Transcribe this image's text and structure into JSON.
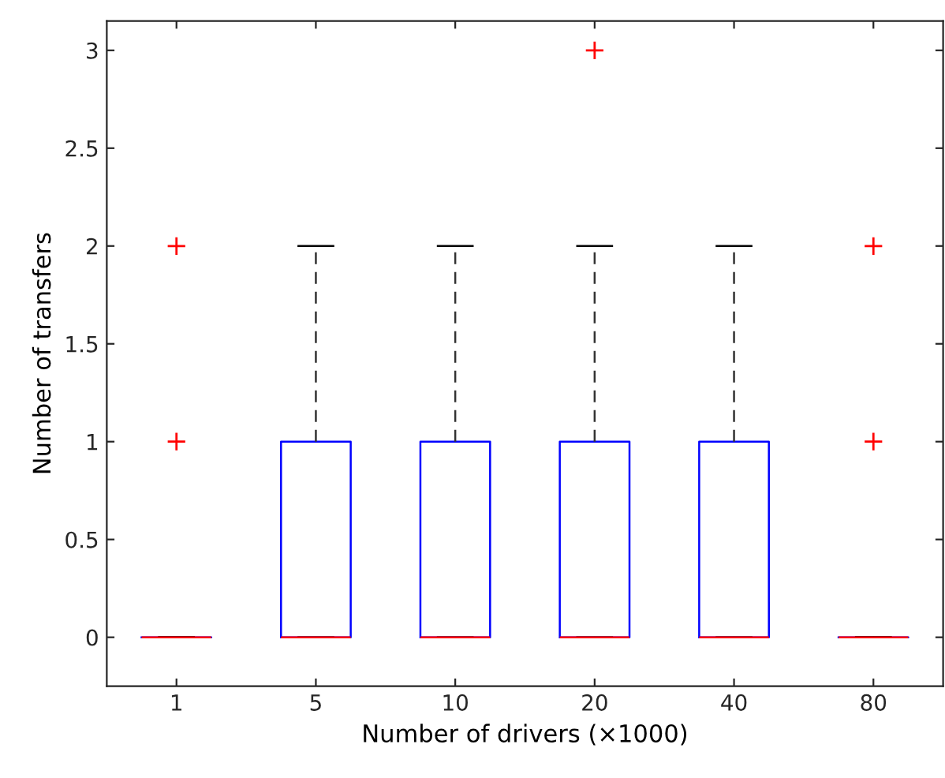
{
  "chart_data": {
    "type": "box",
    "xlabel": "Number of drivers (×1000)",
    "ylabel": "Number of transfers",
    "categories": [
      "1",
      "5",
      "10",
      "20",
      "40",
      "80"
    ],
    "series": [
      {
        "color": "#0000ff",
        "boxes": [
          {
            "low": 0,
            "q1": 0,
            "median": 0,
            "q3": 0,
            "high": 0,
            "outliers": [
              1,
              2
            ]
          },
          {
            "low": 0,
            "q1": 0,
            "median": 0,
            "q3": 1,
            "high": 2
          },
          {
            "low": 0,
            "q1": 0,
            "median": 0,
            "q3": 1,
            "high": 2
          },
          {
            "low": 0,
            "q1": 0,
            "median": 0,
            "q3": 1,
            "high": 2,
            "outliers": [
              3
            ]
          },
          {
            "low": 0,
            "q1": 0,
            "median": 0,
            "q3": 1,
            "high": 2
          },
          {
            "low": 0,
            "q1": 0,
            "median": 0,
            "q3": 0,
            "high": 0,
            "outliers": [
              1,
              2
            ]
          }
        ]
      }
    ],
    "ylim": [
      -0.25,
      3.15
    ],
    "yticks": [
      0,
      0.5,
      1,
      1.5,
      2,
      2.5,
      3
    ],
    "marker": "cross",
    "grid": false,
    "legend": false
  }
}
